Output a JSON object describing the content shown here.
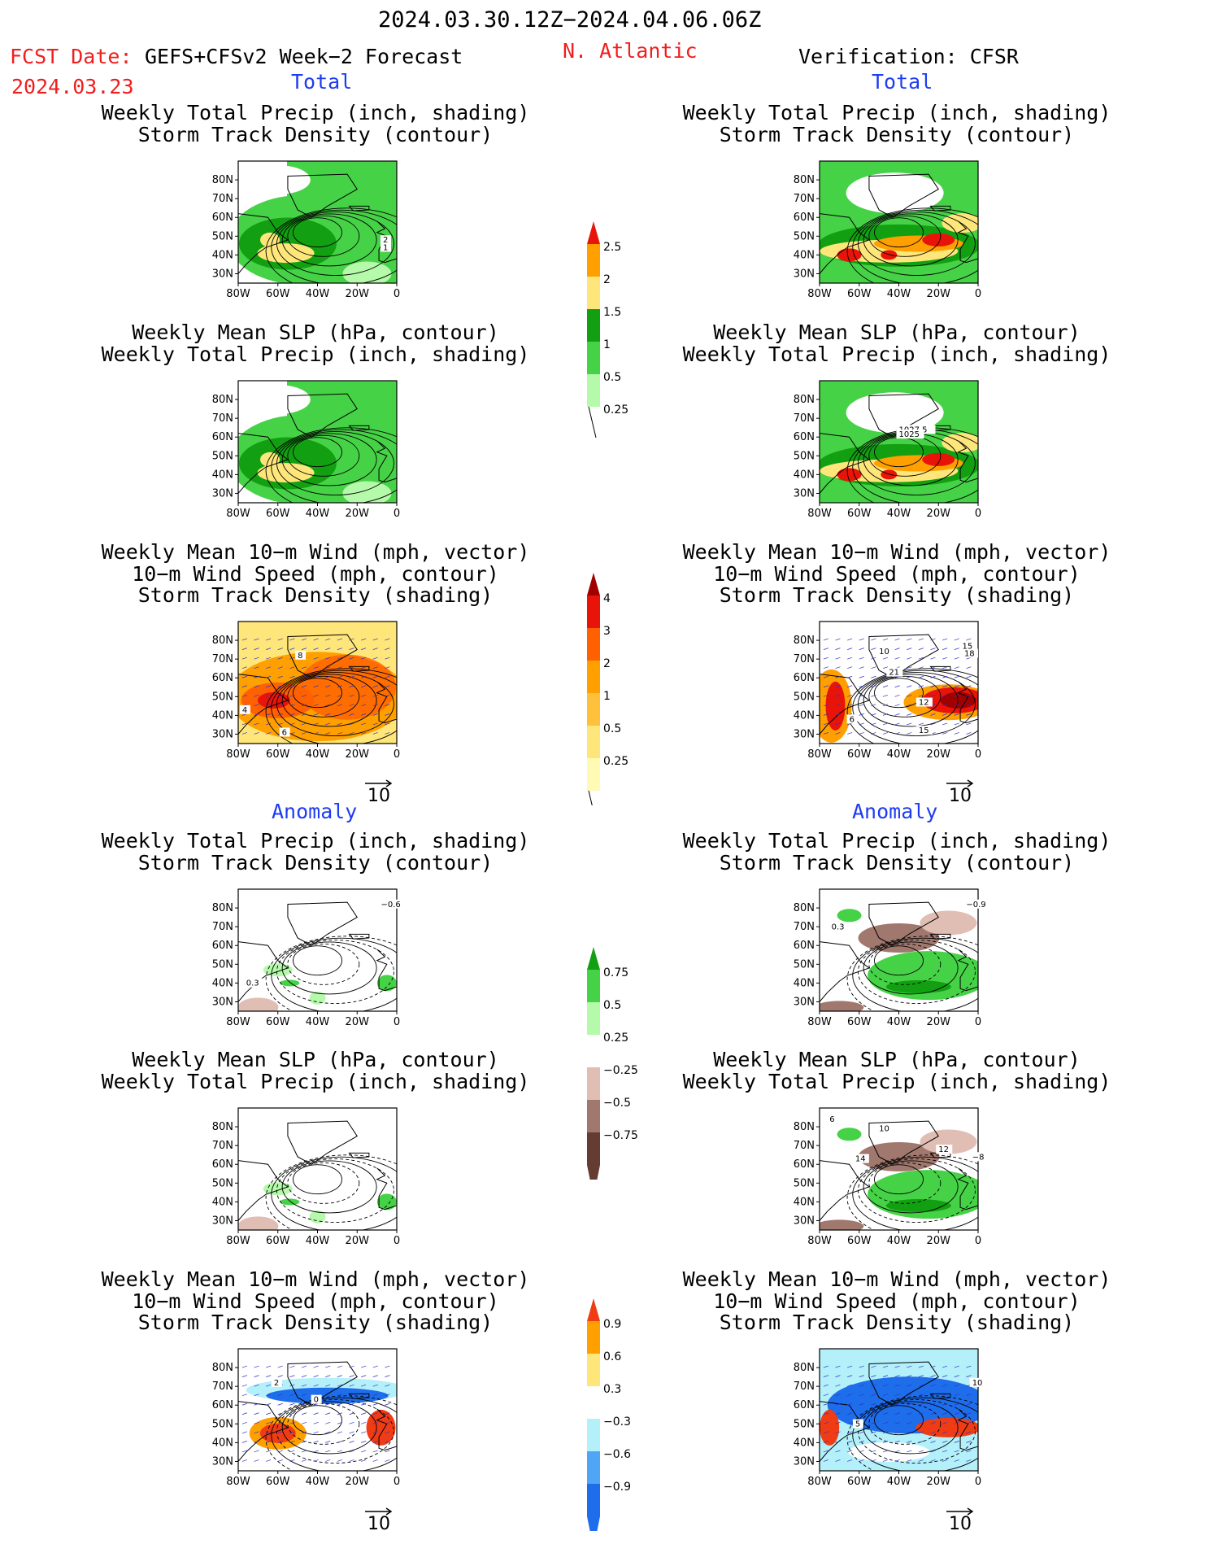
{
  "header": {
    "period": "2024.03.30.12Z−2024.04.06.06Z",
    "fcst_date_label": "FCST Date:",
    "fcst_date": "2024.03.23",
    "forecast_name": "GEFS+CFSv2 Week−2 Forecast",
    "region": "N. Atlantic",
    "verification": "Verification: CFSR"
  },
  "sections": {
    "total": "Total",
    "anomaly": "Anomaly"
  },
  "titles": {
    "precip_storm": [
      "Weekly Total Precip (inch, shading)",
      "Storm Track Density (contour)"
    ],
    "slp_precip": [
      "Weekly Mean SLP (hPa, contour)",
      "Weekly Total Precip (inch, shading)"
    ],
    "wind": [
      "Weekly Mean 10−m Wind (mph, vector)",
      "10−m Wind Speed (mph, contour)",
      "Storm Track Density (shading)"
    ]
  },
  "axes": {
    "lat": [
      "80N",
      "70N",
      "60N",
      "50N",
      "40N",
      "30N"
    ],
    "lon": [
      "80W",
      "60W",
      "40W",
      "20W",
      "0"
    ]
  },
  "vector_ref": "10",
  "colorbars": {
    "precip_total": {
      "labels": [
        "2.5",
        "2",
        "1.5",
        "1",
        "0.5",
        "0.25"
      ],
      "colors": [
        "#e8140a",
        "#ffa000",
        "#ffe67a",
        "#12a012",
        "#46d246",
        "#b4faaa"
      ]
    },
    "storm_total": {
      "labels": [
        "4",
        "3",
        "2",
        "1",
        "0.5",
        "0.25"
      ],
      "colors": [
        "#a00000",
        "#e8140a",
        "#ff6000",
        "#ffa000",
        "#ffc03c",
        "#ffe67a",
        "#fffab4"
      ]
    },
    "precip_anom": {
      "labels": [
        "0.75",
        "0.5",
        "0.25",
        "−0.25",
        "−0.5",
        "−0.75"
      ],
      "colors": [
        "#12a012",
        "#46d246",
        "#b4faaa",
        "#ffffff",
        "#e1beb4",
        "#a0786e",
        "#643c32"
      ]
    },
    "storm_anom": {
      "labels": [
        "0.9",
        "0.6",
        "0.3",
        "−0.3",
        "−0.6",
        "−0.9"
      ],
      "colors": [
        "#f03c14",
        "#ffa000",
        "#ffe67a",
        "#ffffff",
        "#b4f0fa",
        "#50a5f5",
        "#1e6eeb"
      ]
    },
    "shading_colors": {
      "green_dark": "#12a012",
      "green": "#46d246",
      "green_light": "#b4faaa",
      "yellow": "#ffe67a",
      "orange": "#ffa000",
      "red": "#e8140a",
      "brown": "#a0786e",
      "blue": "#1e6eeb",
      "light_blue": "#b4f0fa",
      "contour_blue": "#3232c8"
    }
  },
  "contour_labels": {
    "fcst_precip_storm": [
      "2",
      "1"
    ],
    "ver_slp": [
      "1027.5",
      "1025"
    ],
    "fcst_wind": [
      "8",
      "4",
      "6"
    ],
    "ver_wind": [
      "10",
      "15",
      "18",
      "21",
      "12",
      "6",
      "15"
    ],
    "fcst_anom_storm": [
      "−0.6",
      "0.3"
    ],
    "ver_anom_storm": [
      "−0.9",
      "0.3"
    ],
    "ver_anom_slp": [
      "6",
      "10",
      "14",
      "12",
      "−8"
    ],
    "fcst_anom_wind": [
      "2",
      "0"
    ],
    "ver_anom_wind": [
      "10",
      "5"
    ]
  }
}
